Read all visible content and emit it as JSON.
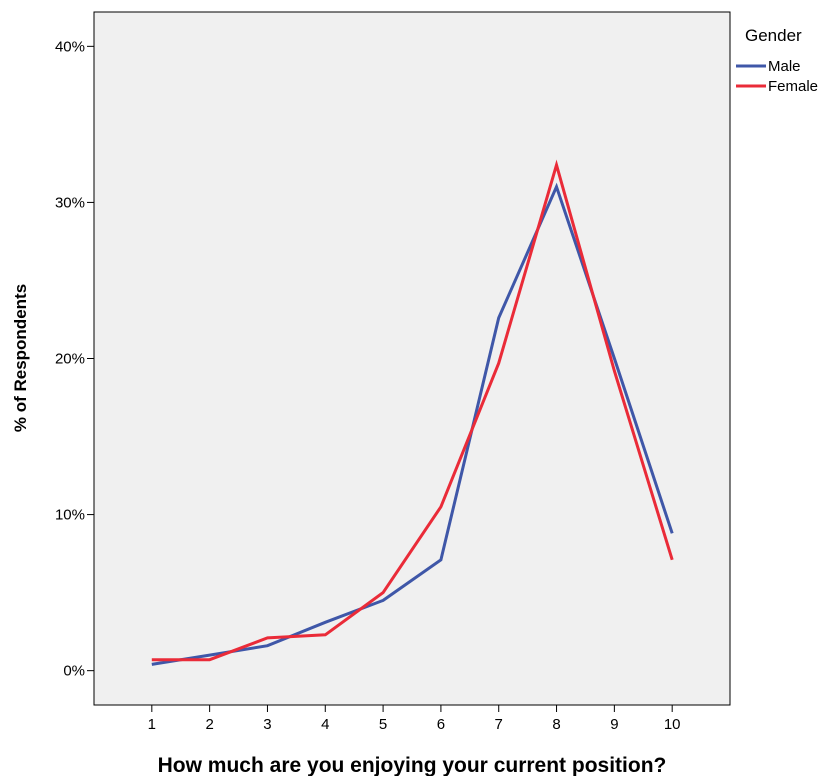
{
  "chart_data": {
    "type": "line",
    "x": [
      1,
      2,
      3,
      4,
      5,
      6,
      7,
      8,
      9,
      10
    ],
    "x_tick_labels": [
      "1",
      "2",
      "3",
      "4",
      "5",
      "6",
      "7",
      "8",
      "9",
      "10"
    ],
    "series": [
      {
        "name": "Male",
        "color": "#3f57a8",
        "values": [
          0.4,
          1.0,
          1.6,
          3.1,
          4.5,
          7.1,
          22.6,
          31.0,
          20.0,
          8.8
        ]
      },
      {
        "name": "Female",
        "color": "#ea2b38",
        "values": [
          0.7,
          0.7,
          2.1,
          2.3,
          5.0,
          10.5,
          19.7,
          32.4,
          19.2,
          7.1
        ]
      }
    ],
    "y_ticks": [
      0,
      10,
      20,
      30,
      40
    ],
    "y_tick_labels": [
      "0%",
      "10%",
      "20%",
      "30%",
      "40%"
    ],
    "ylim": [
      -2.2,
      42.2
    ],
    "xlim": [
      0,
      11
    ],
    "xlabel": "How much are you enjoying your current position?",
    "ylabel": "% of Respondents",
    "legend_title": "Gender",
    "legend_position": "top-right outside plot",
    "grid": false,
    "plot_background": "#f0f0f0"
  }
}
